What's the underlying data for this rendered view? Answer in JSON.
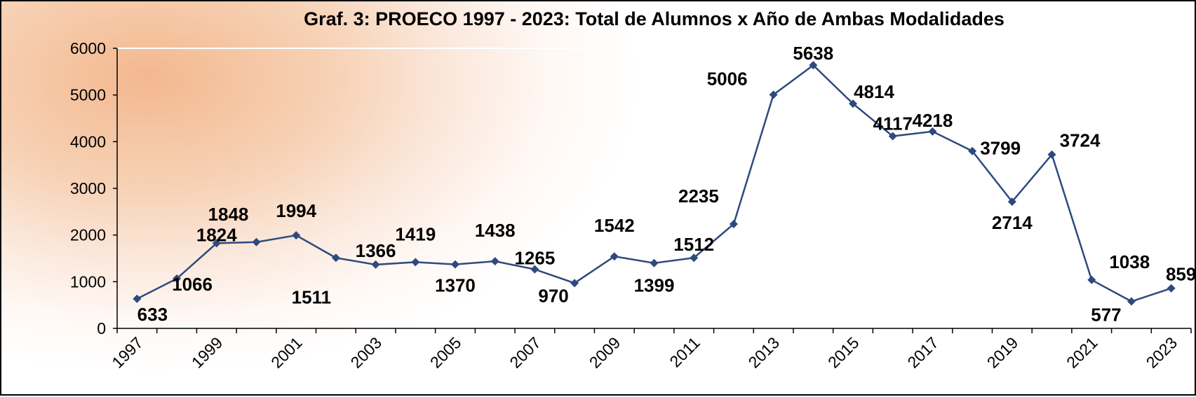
{
  "chart_data": {
    "type": "line",
    "title": "Graf. 3: PROECO 1997 - 2023: Total de Alumnos x Año de Ambas Modalidades",
    "xlabel": "",
    "ylabel": "",
    "x": [
      1997,
      1998,
      1999,
      2000,
      2001,
      2002,
      2003,
      2004,
      2005,
      2006,
      2007,
      2008,
      2009,
      2010,
      2011,
      2012,
      2013,
      2014,
      2015,
      2016,
      2017,
      2018,
      2019,
      2020,
      2021,
      2022,
      2023
    ],
    "x_tick_labels": [
      "1997",
      "1999",
      "2001",
      "2003",
      "2005",
      "2007",
      "2009",
      "2011",
      "2013",
      "2015",
      "2017",
      "2019",
      "2021",
      "2023"
    ],
    "y_tick_labels": [
      "0",
      "1000",
      "2000",
      "3000",
      "4000",
      "5000",
      "6000"
    ],
    "series": [
      {
        "values": [
          633,
          1066,
          1824,
          1848,
          1994,
          1511,
          1366,
          1419,
          1370,
          1438,
          1265,
          970,
          1542,
          1399,
          1512,
          2235,
          5006,
          5638,
          4814,
          4117,
          4218,
          3799,
          2714,
          3724,
          1038,
          577,
          859
        ],
        "color": "#2e4a7d",
        "marker": "diamond"
      }
    ],
    "ylim": [
      0,
      6000
    ],
    "grid": "horizontal-top-line-only",
    "legend": "none"
  }
}
